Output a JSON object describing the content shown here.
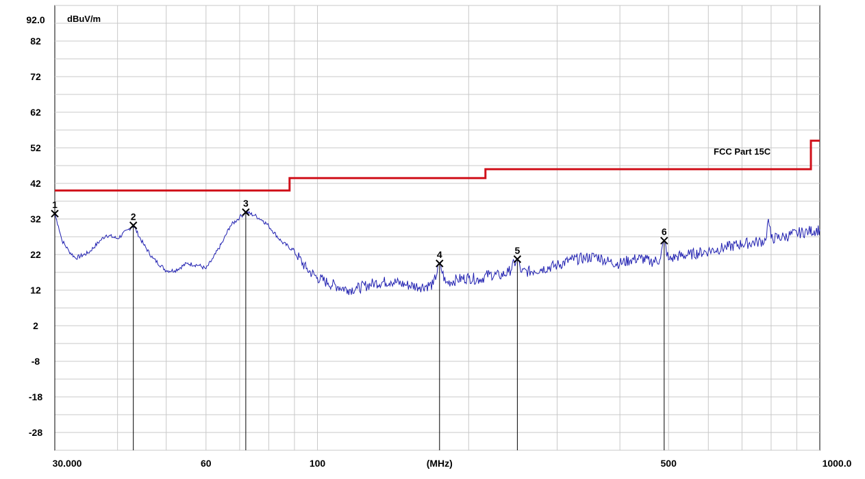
{
  "colors": {
    "limit_line": "#d0101a",
    "trace": "#1f1fb0",
    "grid": "#c8c8c8",
    "plot_background": "#ffffff",
    "axis": "#000000"
  },
  "chart_data": {
    "type": "line",
    "ylabel": "dBuV/m",
    "xlabel": "(MHz)",
    "x_scale": "log",
    "xlim": [
      30,
      1000
    ],
    "ylim": [
      -33,
      92
    ],
    "grid": true,
    "x_tick_labels": [
      "30.000",
      "60",
      "100",
      "(MHz)",
      "500",
      "1000.0"
    ],
    "y_tick_labels": [
      "92.0",
      "82",
      "72",
      "62",
      "52",
      "42",
      "32",
      "22",
      "12",
      "2",
      "-8",
      "-18",
      "-28"
    ],
    "limit_label": "FCC Part 15C",
    "series": [
      {
        "name": "FCC Part 15C",
        "type": "step",
        "points": [
          [
            30,
            40
          ],
          [
            88,
            40
          ],
          [
            88,
            43.5
          ],
          [
            216,
            43.5
          ],
          [
            216,
            46
          ],
          [
            960,
            46
          ],
          [
            960,
            54
          ],
          [
            1000,
            54
          ]
        ]
      },
      {
        "type": "line",
        "points": [
          [
            30,
            33.5
          ],
          [
            30.5,
            30
          ],
          [
            31,
            26
          ],
          [
            32,
            23
          ],
          [
            33,
            21
          ],
          [
            35,
            22.5
          ],
          [
            37,
            26
          ],
          [
            38,
            27.5
          ],
          [
            40,
            26.5
          ],
          [
            42,
            29
          ],
          [
            43,
            30.2
          ],
          [
            45,
            25
          ],
          [
            47,
            21
          ],
          [
            50,
            17.5
          ],
          [
            52,
            17.5
          ],
          [
            55,
            19.5
          ],
          [
            58,
            19
          ],
          [
            60,
            18
          ],
          [
            62,
            21
          ],
          [
            65,
            26
          ],
          [
            67,
            30
          ],
          [
            70,
            32.5
          ],
          [
            72,
            33.9
          ],
          [
            75,
            33
          ],
          [
            78,
            31.5
          ],
          [
            80,
            30
          ],
          [
            85,
            25.5
          ],
          [
            90,
            23
          ],
          [
            95,
            18
          ],
          [
            100,
            15.5
          ],
          [
            105,
            14
          ],
          [
            110,
            13
          ],
          [
            115,
            12.2
          ],
          [
            120,
            12.5
          ],
          [
            130,
            14
          ],
          [
            140,
            14.5
          ],
          [
            150,
            13.5
          ],
          [
            160,
            13
          ],
          [
            170,
            13.5
          ],
          [
            175,
            19.5
          ],
          [
            180,
            14
          ],
          [
            190,
            15
          ],
          [
            200,
            15.5
          ],
          [
            210,
            15
          ],
          [
            220,
            16.5
          ],
          [
            230,
            16
          ],
          [
            240,
            17
          ],
          [
            250,
            20.7
          ],
          [
            255,
            17
          ],
          [
            270,
            17.5
          ],
          [
            280,
            18
          ],
          [
            300,
            19
          ],
          [
            320,
            20.5
          ],
          [
            340,
            21
          ],
          [
            360,
            21.5
          ],
          [
            380,
            20
          ],
          [
            400,
            19.5
          ],
          [
            420,
            20.5
          ],
          [
            440,
            21
          ],
          [
            460,
            20
          ],
          [
            480,
            20.5
          ],
          [
            490,
            25.9
          ],
          [
            500,
            20.5
          ],
          [
            520,
            21.5
          ],
          [
            550,
            22
          ],
          [
            600,
            23
          ],
          [
            650,
            24
          ],
          [
            700,
            25
          ],
          [
            750,
            25.5
          ],
          [
            780,
            26
          ],
          [
            790,
            32
          ],
          [
            800,
            26.5
          ],
          [
            850,
            27
          ],
          [
            900,
            28
          ],
          [
            950,
            28.5
          ],
          [
            1000,
            29
          ]
        ]
      }
    ],
    "markers": [
      {
        "label": "1",
        "x": 30,
        "y": 33.5
      },
      {
        "label": "2",
        "x": 43,
        "y": 30.2
      },
      {
        "label": "3",
        "x": 72,
        "y": 33.9
      },
      {
        "label": "4",
        "x": 175,
        "y": 19.5
      },
      {
        "label": "5",
        "x": 250,
        "y": 20.7
      },
      {
        "label": "6",
        "x": 490,
        "y": 25.9
      }
    ]
  }
}
